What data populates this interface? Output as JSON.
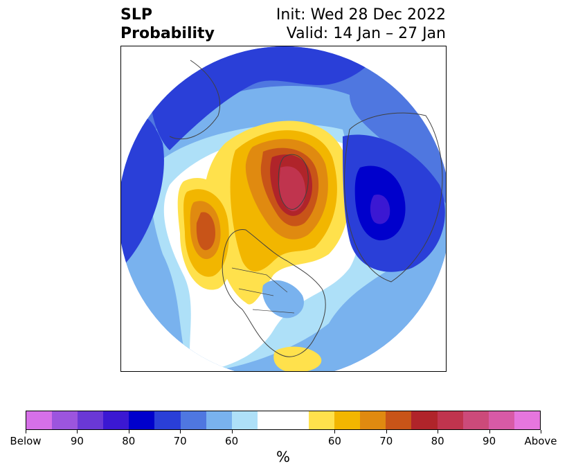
{
  "title": {
    "left_line1": "SLP",
    "left_line2": "Probability",
    "right_line1": "Init: Wed 28 Dec 2022",
    "right_line2": "Valid: 14 Jan – 27 Jan"
  },
  "map": {
    "projection": "north-polar-stereographic",
    "region": "Northern Hemisphere (North America, Arctic, Eurasia)",
    "coastline_color": "#404040"
  },
  "colorbar": {
    "unit_label": "%",
    "colors": [
      "#d670e8",
      "#9c55de",
      "#6a38d6",
      "#3b18d2",
      "#0000cc",
      "#2a3fd8",
      "#4f77e0",
      "#79b2ee",
      "#aee0f8",
      "#ffffff",
      "#ffe14c",
      "#f2b600",
      "#e08a10",
      "#c85418",
      "#b0242a",
      "#c0344e",
      "#cc4a7a",
      "#d85aa6",
      "#e676de"
    ],
    "tick_labels": [
      "Below",
      "90",
      "80",
      "70",
      "60",
      "60",
      "70",
      "80",
      "90",
      "Above"
    ]
  }
}
